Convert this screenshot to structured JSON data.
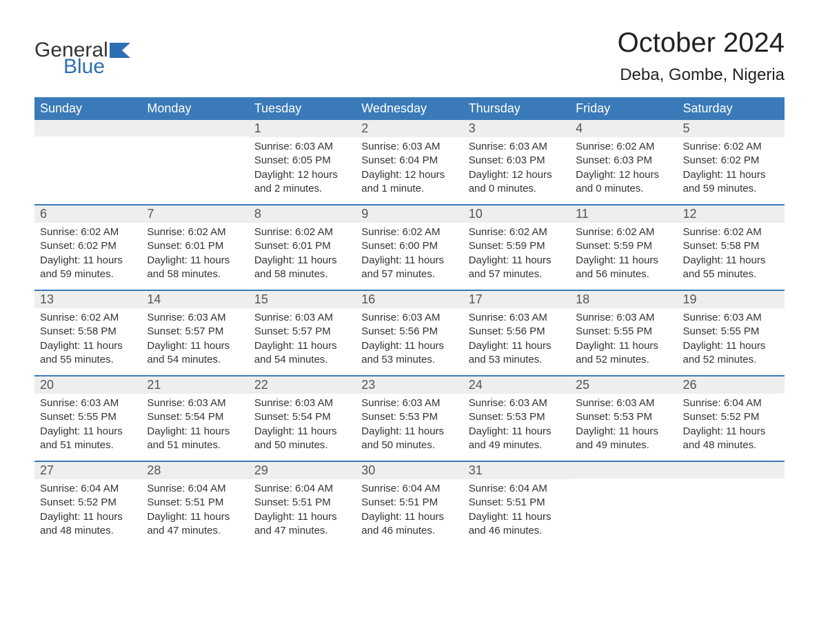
{
  "logo": {
    "word1": "General",
    "word2": "Blue",
    "text_color": "#333333",
    "accent_color": "#2d6fb3"
  },
  "header": {
    "month_title": "October 2024",
    "location": "Deba, Gombe, Nigeria"
  },
  "styles": {
    "header_bg": "#3a7ab8",
    "header_fg": "#ffffff",
    "daynum_bg": "#eeeeee",
    "daynum_fg": "#555555",
    "row_border": "#3a7ab8",
    "body_fg": "#333333",
    "page_bg": "#ffffff",
    "title_fontsize": 40,
    "location_fontsize": 24,
    "weekday_fontsize": 18,
    "daynum_fontsize": 18,
    "body_fontsize": 15
  },
  "weekdays": [
    "Sunday",
    "Monday",
    "Tuesday",
    "Wednesday",
    "Thursday",
    "Friday",
    "Saturday"
  ],
  "weeks": [
    [
      {
        "day": "",
        "sunrise": "",
        "sunset": "",
        "daylight": ""
      },
      {
        "day": "",
        "sunrise": "",
        "sunset": "",
        "daylight": ""
      },
      {
        "day": "1",
        "sunrise": "Sunrise: 6:03 AM",
        "sunset": "Sunset: 6:05 PM",
        "daylight": "Daylight: 12 hours and 2 minutes."
      },
      {
        "day": "2",
        "sunrise": "Sunrise: 6:03 AM",
        "sunset": "Sunset: 6:04 PM",
        "daylight": "Daylight: 12 hours and 1 minute."
      },
      {
        "day": "3",
        "sunrise": "Sunrise: 6:03 AM",
        "sunset": "Sunset: 6:03 PM",
        "daylight": "Daylight: 12 hours and 0 minutes."
      },
      {
        "day": "4",
        "sunrise": "Sunrise: 6:02 AM",
        "sunset": "Sunset: 6:03 PM",
        "daylight": "Daylight: 12 hours and 0 minutes."
      },
      {
        "day": "5",
        "sunrise": "Sunrise: 6:02 AM",
        "sunset": "Sunset: 6:02 PM",
        "daylight": "Daylight: 11 hours and 59 minutes."
      }
    ],
    [
      {
        "day": "6",
        "sunrise": "Sunrise: 6:02 AM",
        "sunset": "Sunset: 6:02 PM",
        "daylight": "Daylight: 11 hours and 59 minutes."
      },
      {
        "day": "7",
        "sunrise": "Sunrise: 6:02 AM",
        "sunset": "Sunset: 6:01 PM",
        "daylight": "Daylight: 11 hours and 58 minutes."
      },
      {
        "day": "8",
        "sunrise": "Sunrise: 6:02 AM",
        "sunset": "Sunset: 6:01 PM",
        "daylight": "Daylight: 11 hours and 58 minutes."
      },
      {
        "day": "9",
        "sunrise": "Sunrise: 6:02 AM",
        "sunset": "Sunset: 6:00 PM",
        "daylight": "Daylight: 11 hours and 57 minutes."
      },
      {
        "day": "10",
        "sunrise": "Sunrise: 6:02 AM",
        "sunset": "Sunset: 5:59 PM",
        "daylight": "Daylight: 11 hours and 57 minutes."
      },
      {
        "day": "11",
        "sunrise": "Sunrise: 6:02 AM",
        "sunset": "Sunset: 5:59 PM",
        "daylight": "Daylight: 11 hours and 56 minutes."
      },
      {
        "day": "12",
        "sunrise": "Sunrise: 6:02 AM",
        "sunset": "Sunset: 5:58 PM",
        "daylight": "Daylight: 11 hours and 55 minutes."
      }
    ],
    [
      {
        "day": "13",
        "sunrise": "Sunrise: 6:02 AM",
        "sunset": "Sunset: 5:58 PM",
        "daylight": "Daylight: 11 hours and 55 minutes."
      },
      {
        "day": "14",
        "sunrise": "Sunrise: 6:03 AM",
        "sunset": "Sunset: 5:57 PM",
        "daylight": "Daylight: 11 hours and 54 minutes."
      },
      {
        "day": "15",
        "sunrise": "Sunrise: 6:03 AM",
        "sunset": "Sunset: 5:57 PM",
        "daylight": "Daylight: 11 hours and 54 minutes."
      },
      {
        "day": "16",
        "sunrise": "Sunrise: 6:03 AM",
        "sunset": "Sunset: 5:56 PM",
        "daylight": "Daylight: 11 hours and 53 minutes."
      },
      {
        "day": "17",
        "sunrise": "Sunrise: 6:03 AM",
        "sunset": "Sunset: 5:56 PM",
        "daylight": "Daylight: 11 hours and 53 minutes."
      },
      {
        "day": "18",
        "sunrise": "Sunrise: 6:03 AM",
        "sunset": "Sunset: 5:55 PM",
        "daylight": "Daylight: 11 hours and 52 minutes."
      },
      {
        "day": "19",
        "sunrise": "Sunrise: 6:03 AM",
        "sunset": "Sunset: 5:55 PM",
        "daylight": "Daylight: 11 hours and 52 minutes."
      }
    ],
    [
      {
        "day": "20",
        "sunrise": "Sunrise: 6:03 AM",
        "sunset": "Sunset: 5:55 PM",
        "daylight": "Daylight: 11 hours and 51 minutes."
      },
      {
        "day": "21",
        "sunrise": "Sunrise: 6:03 AM",
        "sunset": "Sunset: 5:54 PM",
        "daylight": "Daylight: 11 hours and 51 minutes."
      },
      {
        "day": "22",
        "sunrise": "Sunrise: 6:03 AM",
        "sunset": "Sunset: 5:54 PM",
        "daylight": "Daylight: 11 hours and 50 minutes."
      },
      {
        "day": "23",
        "sunrise": "Sunrise: 6:03 AM",
        "sunset": "Sunset: 5:53 PM",
        "daylight": "Daylight: 11 hours and 50 minutes."
      },
      {
        "day": "24",
        "sunrise": "Sunrise: 6:03 AM",
        "sunset": "Sunset: 5:53 PM",
        "daylight": "Daylight: 11 hours and 49 minutes."
      },
      {
        "day": "25",
        "sunrise": "Sunrise: 6:03 AM",
        "sunset": "Sunset: 5:53 PM",
        "daylight": "Daylight: 11 hours and 49 minutes."
      },
      {
        "day": "26",
        "sunrise": "Sunrise: 6:04 AM",
        "sunset": "Sunset: 5:52 PM",
        "daylight": "Daylight: 11 hours and 48 minutes."
      }
    ],
    [
      {
        "day": "27",
        "sunrise": "Sunrise: 6:04 AM",
        "sunset": "Sunset: 5:52 PM",
        "daylight": "Daylight: 11 hours and 48 minutes."
      },
      {
        "day": "28",
        "sunrise": "Sunrise: 6:04 AM",
        "sunset": "Sunset: 5:51 PM",
        "daylight": "Daylight: 11 hours and 47 minutes."
      },
      {
        "day": "29",
        "sunrise": "Sunrise: 6:04 AM",
        "sunset": "Sunset: 5:51 PM",
        "daylight": "Daylight: 11 hours and 47 minutes."
      },
      {
        "day": "30",
        "sunrise": "Sunrise: 6:04 AM",
        "sunset": "Sunset: 5:51 PM",
        "daylight": "Daylight: 11 hours and 46 minutes."
      },
      {
        "day": "31",
        "sunrise": "Sunrise: 6:04 AM",
        "sunset": "Sunset: 5:51 PM",
        "daylight": "Daylight: 11 hours and 46 minutes."
      },
      {
        "day": "",
        "sunrise": "",
        "sunset": "",
        "daylight": ""
      },
      {
        "day": "",
        "sunrise": "",
        "sunset": "",
        "daylight": ""
      }
    ]
  ]
}
